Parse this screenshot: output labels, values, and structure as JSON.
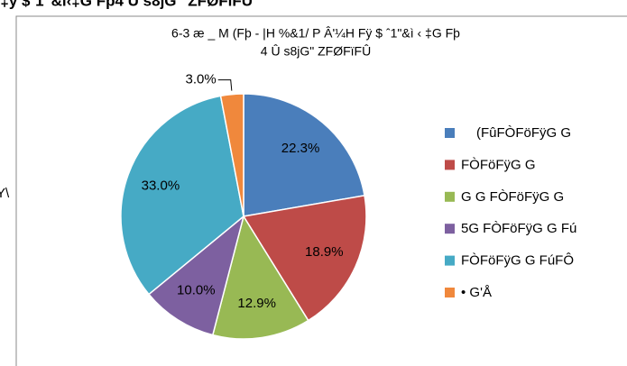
{
  "header_fragment": "ˆ ‡ÿ $ˆ1\"&ì‹‡G Fþ4 Û s8jG\" ZFØFïFÛ",
  "side_fragment": "Y\\",
  "chart_data": {
    "type": "pie",
    "title": [
      "6-3 æ _ M (Fþ - |H %&1/ P Â'¼H Fÿ $ ˆ1\"&ì ‹ ‡G Fþ",
      "4  Û s8jG\" ZFØFïFÛ"
    ],
    "categories": [
      "(FûFÒFöFÿG G",
      "FÒFöFÿG G",
      "G G FÒFöFÿG G",
      "5G FÒFöFÿG G Fú",
      "FÒFöFÿG G FúFÔ",
      "• G'Å"
    ],
    "values": [
      22.3,
      18.9,
      12.9,
      10.0,
      33.0,
      3.0
    ],
    "value_labels": [
      "22.3%",
      "18.9%",
      "12.9%",
      "10.0%",
      "33.0%",
      "3.0%"
    ],
    "colors": [
      "#4a7ebb",
      "#be4b48",
      "#98b954",
      "#7d60a0",
      "#46aac5",
      "#f0883c"
    ],
    "legend": "right"
  }
}
